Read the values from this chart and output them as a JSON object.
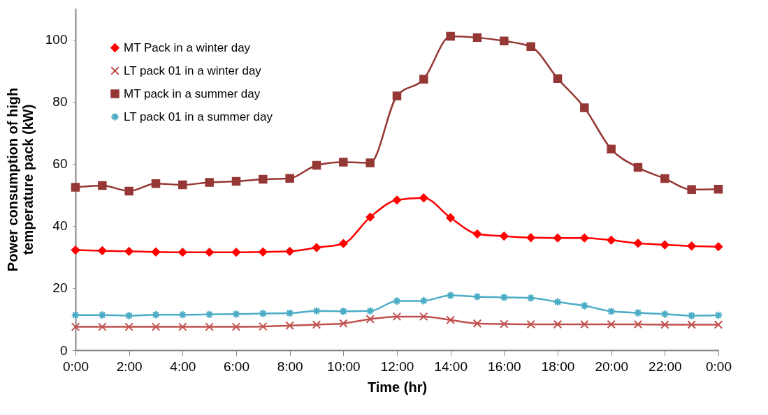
{
  "chart_data": {
    "type": "line",
    "xlabel": "Time (hr)",
    "ylabel": "Power consumption of high temperature pack (kW)",
    "x": [
      0,
      1,
      2,
      3,
      4,
      5,
      6,
      7,
      8,
      9,
      10,
      11,
      12,
      13,
      14,
      15,
      16,
      17,
      18,
      19,
      20,
      21,
      22,
      23,
      24
    ],
    "xlim": [
      0,
      24
    ],
    "xticks": [
      {
        "value": 0,
        "label": "0:00"
      },
      {
        "value": 2,
        "label": "2:00"
      },
      {
        "value": 4,
        "label": "4:00"
      },
      {
        "value": 6,
        "label": "6:00"
      },
      {
        "value": 8,
        "label": "8:00"
      },
      {
        "value": 10,
        "label": "10:00"
      },
      {
        "value": 12,
        "label": "12:00"
      },
      {
        "value": 14,
        "label": "14:00"
      },
      {
        "value": 16,
        "label": "16:00"
      },
      {
        "value": 18,
        "label": "18:00"
      },
      {
        "value": 20,
        "label": "20:00"
      },
      {
        "value": 22,
        "label": "22:00"
      },
      {
        "value": 24,
        "label": "0:00"
      }
    ],
    "ylim": [
      0,
      110
    ],
    "yticks": [
      0,
      20,
      40,
      60,
      80,
      100
    ],
    "grid": false,
    "legend": "top left",
    "line_style": "solid",
    "series": [
      {
        "name": "MT Pack in a winter day",
        "color": "#ff0000",
        "marker": "diamond",
        "values": [
          32.2,
          32,
          31.8,
          31.6,
          31.5,
          31.5,
          31.5,
          31.6,
          31.8,
          33,
          34.3,
          42.8,
          48.3,
          49,
          42.6,
          37.4,
          36.7,
          36.2,
          36.1,
          36.1,
          35.4,
          34.4,
          33.9,
          33.5,
          33.3
        ]
      },
      {
        "name": "LT pack 01 in a winter day",
        "color": "#c0504d",
        "marker": "cross",
        "values": [
          7.5,
          7.5,
          7.5,
          7.5,
          7.5,
          7.5,
          7.5,
          7.6,
          7.9,
          8.2,
          8.6,
          10,
          10.8,
          10.8,
          9.7,
          8.6,
          8.4,
          8.3,
          8.3,
          8.3,
          8.3,
          8.3,
          8.2,
          8.2,
          8.2
        ]
      },
      {
        "name": "MT pack in a summer day",
        "color": "#953735",
        "marker": "square",
        "values": [
          52.4,
          53,
          51.2,
          53.6,
          53.2,
          54,
          54.3,
          55,
          55.3,
          59.5,
          60.5,
          60.3,
          81.8,
          87.2,
          101,
          100.6,
          99.5,
          97.7,
          87.4,
          78,
          64.7,
          58.8,
          55.2,
          51.7,
          51.8
        ]
      },
      {
        "name": "LT pack 01 in a summer day",
        "color": "#4bacc6",
        "marker": "star",
        "values": [
          11.3,
          11.3,
          11.1,
          11.4,
          11.4,
          11.5,
          11.6,
          11.8,
          11.9,
          12.6,
          12.5,
          12.6,
          15.8,
          15.9,
          17.6,
          17.2,
          17,
          16.8,
          15.5,
          14.3,
          12.5,
          12,
          11.6,
          11.1,
          11.2
        ]
      }
    ]
  }
}
